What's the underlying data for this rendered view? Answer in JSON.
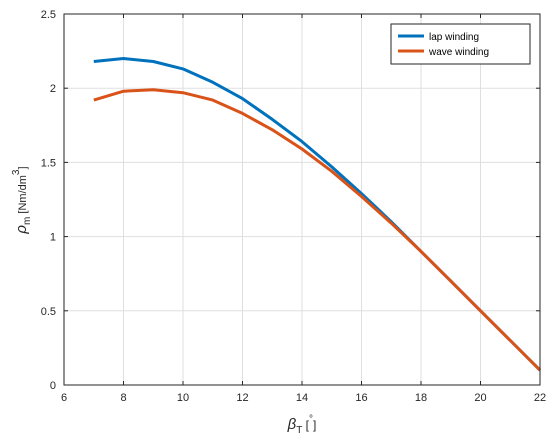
{
  "chart_data": {
    "type": "line",
    "xlim": [
      6,
      22
    ],
    "ylim": [
      0,
      2.5
    ],
    "x_ticks": [
      6,
      8,
      10,
      12,
      14,
      16,
      18,
      20,
      22
    ],
    "y_ticks": [
      0,
      0.5,
      1,
      1.5,
      2,
      2.5
    ],
    "x_tick_labels": [
      "6",
      "8",
      "10",
      "12",
      "14",
      "16",
      "18",
      "20",
      "22"
    ],
    "y_tick_labels": [
      "0",
      "0.5",
      "1",
      "1.5",
      "2",
      "2.5"
    ],
    "xlabel": {
      "symbol": "β",
      "subscript": "T",
      "unit_open": " [",
      "unit": "°",
      "unit_close": "]"
    },
    "ylabel": {
      "symbol": "ρ",
      "subscript": "m",
      "unit_open": " [Nm/dm",
      "exponent": "3",
      "unit_close": "]"
    },
    "grid": true,
    "legend_position": "top-right",
    "series": [
      {
        "name": "lap winding",
        "color": "#0072BD",
        "x": [
          7,
          8,
          9,
          10,
          11,
          12,
          13,
          14,
          15,
          16,
          17,
          18,
          19,
          20,
          21,
          22
        ],
        "y": [
          2.18,
          2.2,
          2.18,
          2.13,
          2.04,
          1.93,
          1.79,
          1.64,
          1.47,
          1.29,
          1.1,
          0.9,
          0.7,
          0.5,
          0.3,
          0.1
        ]
      },
      {
        "name": "wave winding",
        "color": "#D95319",
        "x": [
          7,
          8,
          9,
          10,
          11,
          12,
          13,
          14,
          15,
          16,
          17,
          18,
          19,
          20,
          21,
          22
        ],
        "y": [
          1.92,
          1.98,
          1.99,
          1.97,
          1.92,
          1.83,
          1.72,
          1.59,
          1.44,
          1.27,
          1.09,
          0.9,
          0.7,
          0.5,
          0.3,
          0.1
        ]
      }
    ]
  }
}
